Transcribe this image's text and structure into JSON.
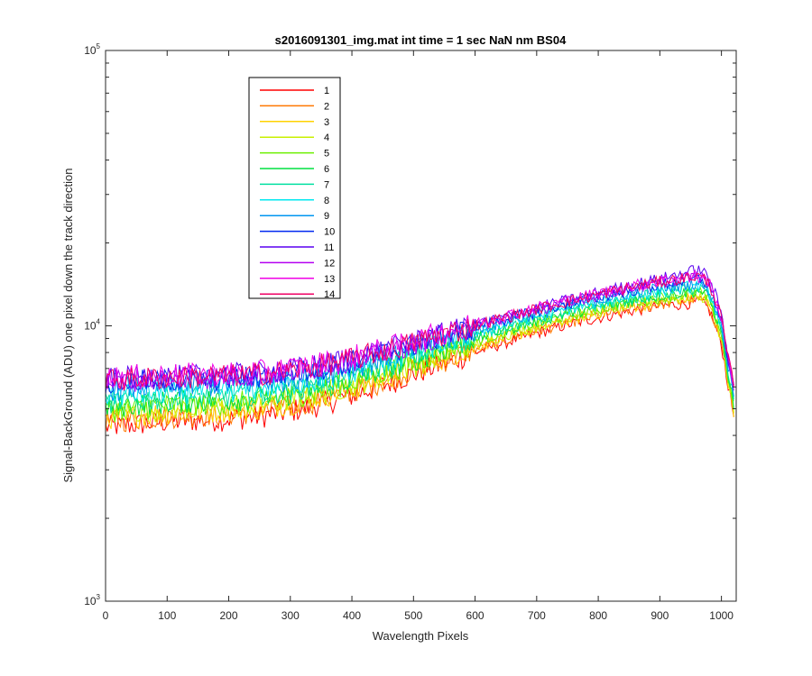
{
  "chart_data": {
    "type": "line",
    "title": "s2016091301_img.mat int time = 1 sec  NaN nm BS04",
    "xlabel": "Wavelength Pixels",
    "ylabel": "Signal-BackGround (ADU) one pixel down the track direction",
    "xlim": [
      0,
      1024
    ],
    "ylim": [
      1000,
      100000
    ],
    "yscale": "log",
    "grid": false,
    "legend_position": "top-left",
    "x_ticks": [
      "0",
      "100",
      "200",
      "300",
      "400",
      "500",
      "600",
      "700",
      "800",
      "900",
      "1000"
    ],
    "y_ticks": [
      {
        "base": "10",
        "exp": "3"
      },
      {
        "base": "10",
        "exp": "4"
      },
      {
        "base": "10",
        "exp": "5"
      }
    ],
    "x": [
      0,
      50,
      100,
      150,
      200,
      250,
      300,
      350,
      400,
      450,
      500,
      550,
      600,
      650,
      700,
      750,
      800,
      850,
      900,
      950,
      965,
      980,
      1000,
      1010,
      1020
    ],
    "series": [
      {
        "name": "1",
        "color": "#ff0000",
        "values": [
          4300,
          4400,
          4500,
          4550,
          4600,
          4700,
          4900,
          5200,
          5600,
          6100,
          6700,
          7300,
          8000,
          8700,
          9400,
          10100,
          10700,
          11300,
          11800,
          12100,
          12200,
          11500,
          8500,
          6200,
          4700
        ]
      },
      {
        "name": "2",
        "color": "#ff7700",
        "values": [
          4500,
          4600,
          4700,
          4750,
          4800,
          4900,
          5100,
          5400,
          5800,
          6300,
          6900,
          7500,
          8200,
          8900,
          9600,
          10300,
          10900,
          11500,
          12000,
          12400,
          12500,
          11800,
          8700,
          6300,
          4800
        ]
      },
      {
        "name": "3",
        "color": "#ffd200",
        "values": [
          4650,
          4750,
          4850,
          4900,
          4950,
          5050,
          5250,
          5550,
          5950,
          6450,
          7050,
          7700,
          8400,
          9100,
          9800,
          10500,
          11100,
          11700,
          12200,
          12600,
          12700,
          12000,
          8900,
          6400,
          4900
        ]
      },
      {
        "name": "4",
        "color": "#c8f000",
        "values": [
          4800,
          4900,
          5000,
          5050,
          5100,
          5200,
          5400,
          5700,
          6100,
          6600,
          7200,
          7900,
          8600,
          9300,
          10000,
          10700,
          11300,
          11900,
          12400,
          12800,
          12900,
          12200,
          9100,
          6500,
          5000
        ]
      },
      {
        "name": "5",
        "color": "#6cf000",
        "values": [
          4950,
          5050,
          5150,
          5200,
          5250,
          5350,
          5550,
          5850,
          6250,
          6800,
          7400,
          8100,
          8800,
          9500,
          10200,
          10900,
          11500,
          12100,
          12700,
          13100,
          13200,
          12400,
          9300,
          6600,
          5100
        ]
      },
      {
        "name": "6",
        "color": "#00e040",
        "values": [
          5100,
          5200,
          5300,
          5350,
          5400,
          5500,
          5700,
          6000,
          6400,
          6950,
          7550,
          8250,
          9000,
          9700,
          10400,
          11100,
          11700,
          12300,
          12900,
          13300,
          13400,
          12600,
          9500,
          6700,
          5200
        ]
      },
      {
        "name": "7",
        "color": "#00e0a0",
        "values": [
          5300,
          5400,
          5500,
          5550,
          5600,
          5700,
          5900,
          6200,
          6600,
          7150,
          7750,
          8450,
          9200,
          9900,
          10600,
          11300,
          11900,
          12500,
          13100,
          13600,
          13700,
          12900,
          9700,
          6900,
          5400
        ]
      },
      {
        "name": "8",
        "color": "#00e8f0",
        "values": [
          5600,
          5700,
          5750,
          5800,
          5850,
          5950,
          6150,
          6450,
          6850,
          7400,
          8000,
          8700,
          9400,
          10100,
          10800,
          11500,
          12100,
          12800,
          13400,
          13900,
          14000,
          13200,
          9900,
          7100,
          5600
        ]
      },
      {
        "name": "9",
        "color": "#0096f0",
        "values": [
          5900,
          6000,
          6050,
          6100,
          6150,
          6250,
          6450,
          6750,
          7150,
          7650,
          8250,
          8950,
          9650,
          10350,
          11050,
          11750,
          12400,
          13100,
          13700,
          14200,
          14300,
          13500,
          10100,
          7300,
          5800
        ]
      },
      {
        "name": "10",
        "color": "#0028f0",
        "values": [
          6200,
          6300,
          6350,
          6400,
          6450,
          6550,
          6750,
          7050,
          7450,
          7950,
          8550,
          9200,
          9900,
          10600,
          11300,
          12000,
          12700,
          13400,
          14100,
          14700,
          14800,
          14000,
          10400,
          7500,
          6000
        ]
      },
      {
        "name": "11",
        "color": "#5a00f0",
        "values": [
          6400,
          6500,
          6550,
          6600,
          6650,
          6750,
          6950,
          7250,
          7650,
          8150,
          8750,
          9400,
          10100,
          10800,
          11600,
          12400,
          13200,
          14000,
          14800,
          15800,
          16000,
          15000,
          11000,
          7800,
          6200
        ]
      },
      {
        "name": "12",
        "color": "#b400f0",
        "values": [
          6300,
          6400,
          6450,
          6500,
          6550,
          6650,
          6850,
          7150,
          7550,
          8050,
          8650,
          9300,
          10000,
          10700,
          11450,
          12200,
          12950,
          13700,
          14400,
          15000,
          15100,
          14200,
          10600,
          7600,
          6100
        ]
      },
      {
        "name": "13",
        "color": "#f000e6",
        "values": [
          6500,
          6600,
          6650,
          6700,
          6750,
          6850,
          7050,
          7350,
          7750,
          8250,
          8850,
          9500,
          10200,
          10900,
          11650,
          12400,
          13150,
          13900,
          14600,
          15200,
          15300,
          14400,
          10700,
          7700,
          6200
        ]
      },
      {
        "name": "14",
        "color": "#f00064",
        "values": [
          6350,
          6450,
          6500,
          6550,
          6600,
          6700,
          6900,
          7200,
          7600,
          8100,
          8700,
          9350,
          10050,
          10750,
          11500,
          12250,
          13000,
          13750,
          14450,
          15050,
          15150,
          14300,
          10650,
          7650,
          6150
        ]
      }
    ]
  }
}
